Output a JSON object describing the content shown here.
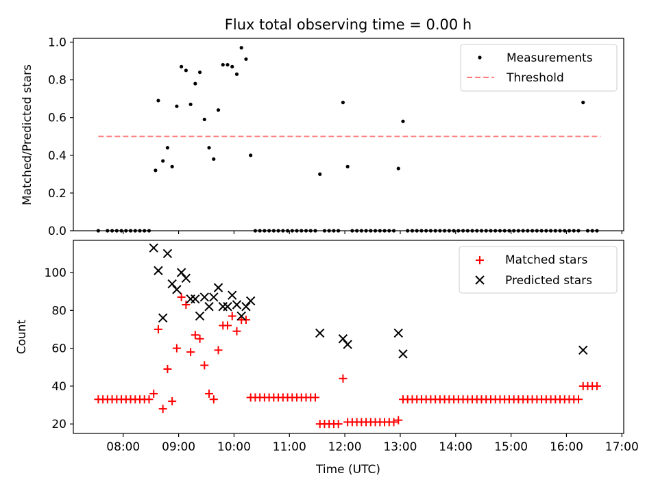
{
  "chart_data": [
    {
      "type": "scatter",
      "title": "Flux total observing time = 0.00 h",
      "xlabel": "",
      "ylabel": "Matched/Predicted stars",
      "xlim": [
        "07:06",
        "17:02"
      ],
      "ylim": [
        0.0,
        1.02
      ],
      "yticks": [
        "0.0",
        "0.2",
        "0.4",
        "0.6",
        "0.8",
        "1.0"
      ],
      "xticks": [
        "08:00",
        "09:00",
        "10:00",
        "11:00",
        "12:00",
        "13:00",
        "14:00",
        "15:00",
        "16:00",
        "17:00"
      ],
      "xtick_labels_visible": false,
      "legend": {
        "position": "top-right",
        "entries": [
          "Measurements",
          "Threshold"
        ]
      },
      "threshold": {
        "name": "Threshold",
        "value": 0.5,
        "x_range": [
          "07:33",
          "16:37"
        ],
        "color": "#ff7f7f",
        "style": "dashed"
      },
      "series": [
        {
          "name": "Measurements",
          "color": "#000000",
          "marker": "dot",
          "points": [
            {
              "x": "08:35",
              "y": 0.32
            },
            {
              "x": "08:38",
              "y": 0.69
            },
            {
              "x": "08:43",
              "y": 0.37
            },
            {
              "x": "08:48",
              "y": 0.44
            },
            {
              "x": "08:53",
              "y": 0.34
            },
            {
              "x": "08:58",
              "y": 0.66
            },
            {
              "x": "09:03",
              "y": 0.87
            },
            {
              "x": "09:08",
              "y": 0.85
            },
            {
              "x": "09:13",
              "y": 0.67
            },
            {
              "x": "09:18",
              "y": 0.78
            },
            {
              "x": "09:23",
              "y": 0.84
            },
            {
              "x": "09:28",
              "y": 0.59
            },
            {
              "x": "09:33",
              "y": 0.44
            },
            {
              "x": "09:38",
              "y": 0.38
            },
            {
              "x": "09:43",
              "y": 0.64
            },
            {
              "x": "09:48",
              "y": 0.88
            },
            {
              "x": "09:53",
              "y": 0.88
            },
            {
              "x": "09:58",
              "y": 0.87
            },
            {
              "x": "10:03",
              "y": 0.83
            },
            {
              "x": "10:08",
              "y": 0.97
            },
            {
              "x": "10:13",
              "y": 0.91
            },
            {
              "x": "10:18",
              "y": 0.4
            },
            {
              "x": "11:33",
              "y": 0.3
            },
            {
              "x": "11:58",
              "y": 0.68
            },
            {
              "x": "12:03",
              "y": 0.34
            },
            {
              "x": "12:58",
              "y": 0.33
            },
            {
              "x": "13:03",
              "y": 0.58
            },
            {
              "x": "16:18",
              "y": 0.68
            }
          ],
          "zero_points": [
            "07:33",
            "07:43",
            "07:48",
            "07:53",
            "07:58",
            "08:03",
            "08:08",
            "08:13",
            "08:18",
            "08:23",
            "08:28",
            "10:23",
            "10:28",
            "10:33",
            "10:38",
            "10:43",
            "10:48",
            "10:53",
            "10:58",
            "11:03",
            "11:08",
            "11:13",
            "11:18",
            "11:23",
            "11:28",
            "11:38",
            "11:43",
            "11:48",
            "11:53",
            "12:08",
            "12:13",
            "12:18",
            "12:23",
            "12:28",
            "12:33",
            "12:38",
            "12:43",
            "12:48",
            "12:53",
            "13:08",
            "13:13",
            "13:18",
            "13:23",
            "13:28",
            "13:33",
            "13:38",
            "13:43",
            "13:48",
            "13:53",
            "13:58",
            "14:03",
            "14:08",
            "14:13",
            "14:18",
            "14:23",
            "14:28",
            "14:33",
            "14:38",
            "14:43",
            "14:48",
            "14:53",
            "14:58",
            "15:03",
            "15:08",
            "15:13",
            "15:18",
            "15:23",
            "15:28",
            "15:33",
            "15:38",
            "15:43",
            "15:48",
            "15:53",
            "15:58",
            "16:03",
            "16:08",
            "16:13",
            "16:23",
            "16:28",
            "16:33"
          ]
        }
      ]
    },
    {
      "type": "scatter",
      "title": "",
      "xlabel": "Time (UTC)",
      "ylabel": "Count",
      "xlim": [
        "07:06",
        "17:02"
      ],
      "ylim": [
        15,
        117
      ],
      "yticks": [
        "20",
        "40",
        "60",
        "80",
        "100"
      ],
      "xticks": [
        "08:00",
        "09:00",
        "10:00",
        "11:00",
        "12:00",
        "13:00",
        "14:00",
        "15:00",
        "16:00",
        "17:00"
      ],
      "legend": {
        "position": "top-right",
        "entries": [
          "Matched stars",
          "Predicted stars"
        ]
      },
      "series": [
        {
          "name": "Matched stars",
          "color": "#ff0000",
          "marker": "plus",
          "points": [
            {
              "x": "07:33",
              "y": 33
            },
            {
              "x": "07:38",
              "y": 33
            },
            {
              "x": "07:43",
              "y": 33
            },
            {
              "x": "07:48",
              "y": 33
            },
            {
              "x": "07:53",
              "y": 33
            },
            {
              "x": "07:58",
              "y": 33
            },
            {
              "x": "08:03",
              "y": 33
            },
            {
              "x": "08:08",
              "y": 33
            },
            {
              "x": "08:13",
              "y": 33
            },
            {
              "x": "08:18",
              "y": 33
            },
            {
              "x": "08:23",
              "y": 33
            },
            {
              "x": "08:28",
              "y": 33
            },
            {
              "x": "08:33",
              "y": 36
            },
            {
              "x": "08:38",
              "y": 70
            },
            {
              "x": "08:43",
              "y": 28
            },
            {
              "x": "08:48",
              "y": 49
            },
            {
              "x": "08:53",
              "y": 32
            },
            {
              "x": "08:58",
              "y": 60
            },
            {
              "x": "09:03",
              "y": 87
            },
            {
              "x": "09:08",
              "y": 83
            },
            {
              "x": "09:13",
              "y": 58
            },
            {
              "x": "09:18",
              "y": 67
            },
            {
              "x": "09:23",
              "y": 65
            },
            {
              "x": "09:28",
              "y": 51
            },
            {
              "x": "09:33",
              "y": 36
            },
            {
              "x": "09:38",
              "y": 33
            },
            {
              "x": "09:43",
              "y": 59
            },
            {
              "x": "09:48",
              "y": 72
            },
            {
              "x": "09:53",
              "y": 72
            },
            {
              "x": "09:58",
              "y": 77
            },
            {
              "x": "10:03",
              "y": 69
            },
            {
              "x": "10:08",
              "y": 75
            },
            {
              "x": "10:13",
              "y": 75
            },
            {
              "x": "10:18",
              "y": 34
            },
            {
              "x": "10:23",
              "y": 34
            },
            {
              "x": "10:28",
              "y": 34
            },
            {
              "x": "10:33",
              "y": 34
            },
            {
              "x": "10:38",
              "y": 34
            },
            {
              "x": "10:43",
              "y": 34
            },
            {
              "x": "10:48",
              "y": 34
            },
            {
              "x": "10:53",
              "y": 34
            },
            {
              "x": "10:58",
              "y": 34
            },
            {
              "x": "11:03",
              "y": 34
            },
            {
              "x": "11:08",
              "y": 34
            },
            {
              "x": "11:13",
              "y": 34
            },
            {
              "x": "11:18",
              "y": 34
            },
            {
              "x": "11:23",
              "y": 34
            },
            {
              "x": "11:28",
              "y": 34
            },
            {
              "x": "11:33",
              "y": 20
            },
            {
              "x": "11:38",
              "y": 20
            },
            {
              "x": "11:43",
              "y": 20
            },
            {
              "x": "11:48",
              "y": 20
            },
            {
              "x": "11:53",
              "y": 20
            },
            {
              "x": "11:58",
              "y": 44
            },
            {
              "x": "12:03",
              "y": 21
            },
            {
              "x": "12:08",
              "y": 21
            },
            {
              "x": "12:13",
              "y": 21
            },
            {
              "x": "12:18",
              "y": 21
            },
            {
              "x": "12:23",
              "y": 21
            },
            {
              "x": "12:28",
              "y": 21
            },
            {
              "x": "12:33",
              "y": 21
            },
            {
              "x": "12:38",
              "y": 21
            },
            {
              "x": "12:43",
              "y": 21
            },
            {
              "x": "12:48",
              "y": 21
            },
            {
              "x": "12:53",
              "y": 21
            },
            {
              "x": "12:58",
              "y": 22
            },
            {
              "x": "13:03",
              "y": 33
            },
            {
              "x": "13:08",
              "y": 33
            },
            {
              "x": "13:13",
              "y": 33
            },
            {
              "x": "13:18",
              "y": 33
            },
            {
              "x": "13:23",
              "y": 33
            },
            {
              "x": "13:28",
              "y": 33
            },
            {
              "x": "13:33",
              "y": 33
            },
            {
              "x": "13:38",
              "y": 33
            },
            {
              "x": "13:43",
              "y": 33
            },
            {
              "x": "13:48",
              "y": 33
            },
            {
              "x": "13:53",
              "y": 33
            },
            {
              "x": "13:58",
              "y": 33
            },
            {
              "x": "14:03",
              "y": 33
            },
            {
              "x": "14:08",
              "y": 33
            },
            {
              "x": "14:13",
              "y": 33
            },
            {
              "x": "14:18",
              "y": 33
            },
            {
              "x": "14:23",
              "y": 33
            },
            {
              "x": "14:28",
              "y": 33
            },
            {
              "x": "14:33",
              "y": 33
            },
            {
              "x": "14:38",
              "y": 33
            },
            {
              "x": "14:43",
              "y": 33
            },
            {
              "x": "14:48",
              "y": 33
            },
            {
              "x": "14:53",
              "y": 33
            },
            {
              "x": "14:58",
              "y": 33
            },
            {
              "x": "15:03",
              "y": 33
            },
            {
              "x": "15:08",
              "y": 33
            },
            {
              "x": "15:13",
              "y": 33
            },
            {
              "x": "15:18",
              "y": 33
            },
            {
              "x": "15:23",
              "y": 33
            },
            {
              "x": "15:28",
              "y": 33
            },
            {
              "x": "15:33",
              "y": 33
            },
            {
              "x": "15:38",
              "y": 33
            },
            {
              "x": "15:43",
              "y": 33
            },
            {
              "x": "15:48",
              "y": 33
            },
            {
              "x": "15:53",
              "y": 33
            },
            {
              "x": "15:58",
              "y": 33
            },
            {
              "x": "16:03",
              "y": 33
            },
            {
              "x": "16:08",
              "y": 33
            },
            {
              "x": "16:13",
              "y": 33
            },
            {
              "x": "16:18",
              "y": 40
            },
            {
              "x": "16:23",
              "y": 40
            },
            {
              "x": "16:28",
              "y": 40
            },
            {
              "x": "16:33",
              "y": 40
            }
          ]
        },
        {
          "name": "Predicted stars",
          "color": "#000000",
          "marker": "x",
          "points": [
            {
              "x": "08:33",
              "y": 113
            },
            {
              "x": "08:38",
              "y": 101
            },
            {
              "x": "08:43",
              "y": 76
            },
            {
              "x": "08:48",
              "y": 110
            },
            {
              "x": "08:53",
              "y": 94
            },
            {
              "x": "08:58",
              "y": 91
            },
            {
              "x": "09:03",
              "y": 100
            },
            {
              "x": "09:08",
              "y": 97
            },
            {
              "x": "09:13",
              "y": 86
            },
            {
              "x": "09:18",
              "y": 86
            },
            {
              "x": "09:23",
              "y": 77
            },
            {
              "x": "09:28",
              "y": 87
            },
            {
              "x": "09:33",
              "y": 82
            },
            {
              "x": "09:38",
              "y": 87
            },
            {
              "x": "09:43",
              "y": 92
            },
            {
              "x": "09:48",
              "y": 82
            },
            {
              "x": "09:53",
              "y": 82
            },
            {
              "x": "09:58",
              "y": 88
            },
            {
              "x": "10:03",
              "y": 83
            },
            {
              "x": "10:08",
              "y": 77
            },
            {
              "x": "10:13",
              "y": 82
            },
            {
              "x": "10:18",
              "y": 85
            },
            {
              "x": "11:33",
              "y": 68
            },
            {
              "x": "11:58",
              "y": 65
            },
            {
              "x": "12:03",
              "y": 62
            },
            {
              "x": "12:58",
              "y": 68
            },
            {
              "x": "13:03",
              "y": 57
            },
            {
              "x": "16:18",
              "y": 59
            }
          ]
        }
      ]
    }
  ]
}
